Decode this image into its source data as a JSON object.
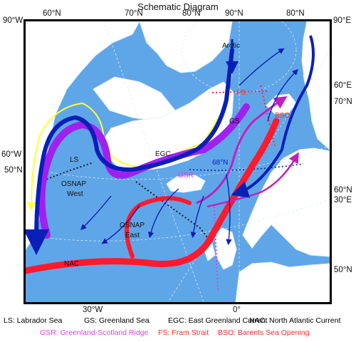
{
  "title": "Schematic Diagram",
  "outer_labels": {
    "top": [
      "90°W",
      "60°N",
      "70°N",
      "80°N",
      "90°N",
      "80°N",
      "90°E"
    ],
    "left": [
      "60°W",
      "50°N"
    ],
    "right": [
      "60°E",
      "70°N",
      "60°N",
      "30°E",
      "50°N"
    ],
    "bottom": [
      "30°W",
      "0°"
    ]
  },
  "map_labels": {
    "arctic": "Arctic",
    "fs": "FS",
    "bso": "BSO",
    "gs": "GS",
    "egc": "EGC",
    "lat68": "68°N",
    "gsr": "GSR",
    "ls": "LS",
    "osnap_west_1": "OSNAP",
    "osnap_west_2": "West",
    "osnap_east_1": "OSNAP",
    "osnap_east_2": "East",
    "nac": "NAC"
  },
  "legend_row1": [
    {
      "text": "LS: Labrador Sea",
      "color": "#000000"
    },
    {
      "text": "GS: Greenland Sea",
      "color": "#000000"
    },
    {
      "text": "EGC: East Greenland Current",
      "color": "#000000"
    },
    {
      "text": "NAC: North Atlantic Current",
      "color": "#000000"
    }
  ],
  "legend_row2": [
    {
      "text": "GSR: Greenland-Scotland Ridge",
      "color": "#e040e0"
    },
    {
      "text": "FS: Fram Strait",
      "color": "#ff2a2a"
    },
    {
      "text": "BSO: Barents Sea Opening",
      "color": "#ff2a2a"
    }
  ],
  "colors": {
    "ocean": "#5fa6e8",
    "land": "#ffffff",
    "warm": "#ff1a2e",
    "transform": "#a020f0",
    "cold": "#0a1fb8",
    "coastal": "#ffff33",
    "section": "#1a1a1a",
    "gsr": "#e040e0"
  }
}
